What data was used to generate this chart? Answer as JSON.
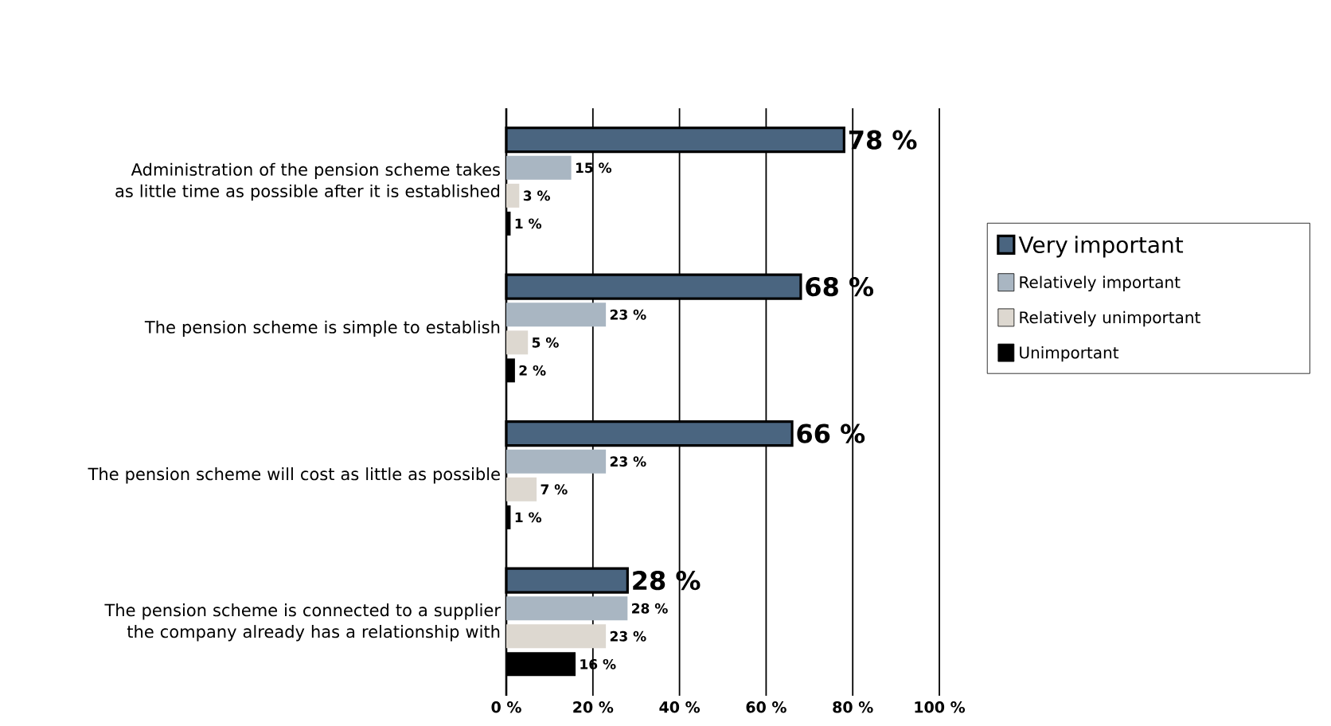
{
  "chart_data": {
    "type": "bar",
    "orientation": "horizontal",
    "categories": [
      "Administration of the pension scheme takes as little time as possible after it is established",
      "The pension scheme is simple to establish",
      "The pension scheme will cost as little as possible",
      "The pension scheme is connected to a supplier the company already has a relationship with"
    ],
    "series": [
      {
        "name": "Very important",
        "color": "#4a6580",
        "values": [
          78,
          68,
          66,
          28
        ],
        "value_labels": [
          "78 %",
          "68 %",
          "66 %",
          "28 %"
        ]
      },
      {
        "name": "Relatively important",
        "color": "#a9b6c2",
        "values": [
          15,
          23,
          23,
          28
        ],
        "value_labels": [
          "15 %",
          "23 %",
          "23 %",
          "28 %"
        ]
      },
      {
        "name": "Relatively unimportant",
        "color": "#ddd8d0",
        "values": [
          3,
          5,
          7,
          23
        ],
        "value_labels": [
          "3 %",
          "5 %",
          "7 %",
          "23 %"
        ]
      },
      {
        "name": "Unimportant",
        "color": "#000000",
        "values": [
          1,
          2,
          1,
          16
        ],
        "value_labels": [
          "1 %",
          "2 %",
          "1 %",
          "16 %"
        ]
      }
    ],
    "xlim": [
      0,
      100
    ],
    "xticks": [
      {
        "value": 0,
        "label": "0 %"
      },
      {
        "value": 20,
        "label": "20 %"
      },
      {
        "value": 40,
        "label": "40 %"
      },
      {
        "value": 60,
        "label": "60 %"
      },
      {
        "value": 80,
        "label": "80 %"
      },
      {
        "value": 100,
        "label": "100 %"
      }
    ],
    "grid": "x",
    "legend": "right"
  }
}
